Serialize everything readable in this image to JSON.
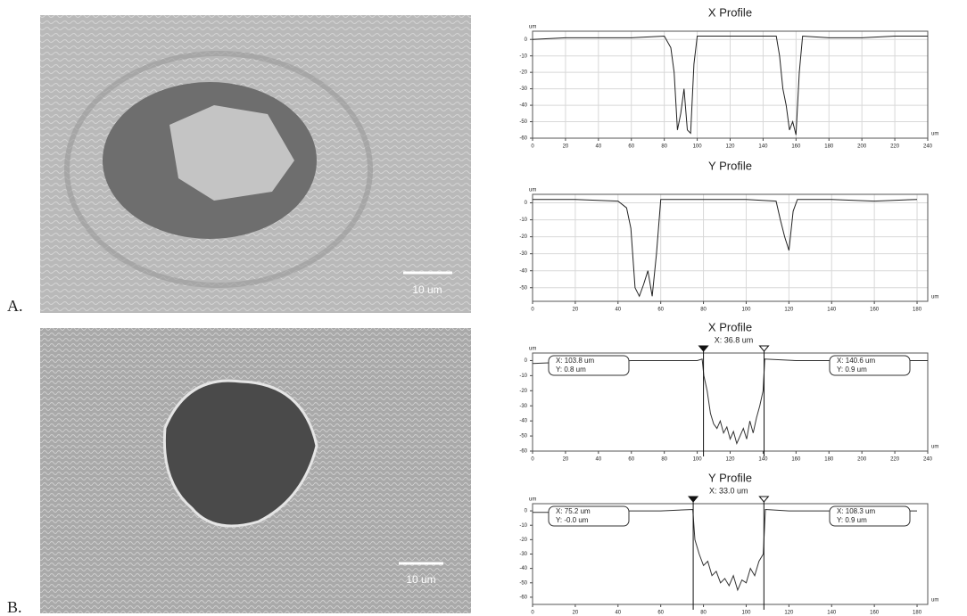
{
  "panels": [
    {
      "label": "A.",
      "scale_label": "10 um"
    },
    {
      "label": "B.",
      "scale_label": "10 um"
    }
  ],
  "chart_data": [
    {
      "type": "line",
      "title": "X Profile",
      "y_unit": "um",
      "x_unit": "um",
      "color": "#222222",
      "grid": true,
      "x": [
        0,
        20,
        40,
        60,
        80,
        84,
        86,
        88,
        90,
        92,
        94,
        96,
        98,
        100,
        120,
        140,
        148,
        150,
        152,
        154,
        156,
        158,
        160,
        162,
        164,
        180,
        200,
        220,
        240
      ],
      "values": [
        0,
        1,
        1,
        1,
        2,
        -5,
        -20,
        -55,
        -45,
        -30,
        -55,
        -57,
        -15,
        2,
        2,
        2,
        2,
        -10,
        -30,
        -40,
        -55,
        -50,
        -58,
        -20,
        2,
        1,
        1,
        2,
        2
      ],
      "xlim": [
        0,
        240
      ],
      "ylim": [
        -60,
        5
      ],
      "xticks": [
        0,
        20,
        40,
        60,
        80,
        100,
        120,
        140,
        160,
        180,
        200,
        220,
        240
      ],
      "yticks": [
        0,
        -10,
        -20,
        -30,
        -40,
        -50,
        -60
      ]
    },
    {
      "type": "line",
      "title": "Y Profile",
      "y_unit": "um",
      "x_unit": "um",
      "color": "#222222",
      "grid": true,
      "x": [
        0,
        20,
        40,
        44,
        46,
        48,
        50,
        52,
        54,
        56,
        58,
        60,
        80,
        100,
        114,
        116,
        118,
        120,
        122,
        124,
        140,
        160,
        180
      ],
      "values": [
        2,
        2,
        1,
        -3,
        -15,
        -50,
        -55,
        -48,
        -40,
        -55,
        -30,
        2,
        2,
        2,
        1,
        -10,
        -20,
        -28,
        -5,
        2,
        2,
        1,
        2
      ],
      "xlim": [
        0,
        185
      ],
      "ylim": [
        -58,
        5
      ],
      "xticks": [
        0,
        20,
        40,
        60,
        80,
        100,
        120,
        140,
        160,
        180
      ],
      "yticks": [
        0,
        -10,
        -20,
        -30,
        -40,
        -50
      ]
    },
    {
      "type": "line",
      "title": "X Profile",
      "cursor_label": "X: 36.8 um",
      "y_unit": "um",
      "x_unit": "um",
      "color": "#333333",
      "grid": false,
      "x": [
        0,
        20,
        40,
        60,
        80,
        100,
        103,
        104,
        106,
        108,
        110,
        112,
        114,
        116,
        118,
        120,
        122,
        124,
        126,
        128,
        130,
        132,
        134,
        136,
        138,
        140,
        141,
        160,
        180,
        200,
        220,
        240
      ],
      "values": [
        -2,
        -1,
        -1,
        0,
        0,
        0,
        1,
        -10,
        -20,
        -35,
        -42,
        -45,
        -40,
        -48,
        -44,
        -52,
        -47,
        -55,
        -50,
        -45,
        -52,
        -40,
        -48,
        -38,
        -30,
        -20,
        1,
        0,
        0,
        0,
        0,
        0
      ],
      "xlim": [
        0,
        240
      ],
      "ylim": [
        -60,
        5
      ],
      "xticks": [
        0,
        20,
        40,
        60,
        80,
        100,
        120,
        140,
        160,
        180,
        200,
        220,
        240
      ],
      "yticks": [
        0,
        -10,
        -20,
        -30,
        -40,
        -50,
        -60
      ],
      "cursors": [
        103.8,
        140.6
      ],
      "cursor_boxes": [
        [
          "X: 103.8 um",
          "Y: 0.8 um"
        ],
        [
          "X: 140.6 um",
          "Y: 0.9 um"
        ]
      ]
    },
    {
      "type": "line",
      "title": "Y Profile",
      "cursor_label": "X: 33.0 um",
      "y_unit": "um",
      "x_unit": "um",
      "color": "#333333",
      "grid": false,
      "x": [
        0,
        20,
        40,
        60,
        75,
        76,
        78,
        80,
        82,
        84,
        86,
        88,
        90,
        92,
        94,
        96,
        98,
        100,
        102,
        104,
        106,
        108,
        109,
        120,
        140,
        160,
        180
      ],
      "values": [
        -1,
        -1,
        0,
        0,
        1,
        -20,
        -30,
        -38,
        -35,
        -45,
        -42,
        -50,
        -47,
        -52,
        -45,
        -55,
        -48,
        -50,
        -40,
        -45,
        -35,
        -30,
        1,
        0,
        0,
        0,
        0
      ],
      "xlim": [
        0,
        185
      ],
      "ylim": [
        -65,
        5
      ],
      "xticks": [
        0,
        20,
        40,
        60,
        80,
        100,
        120,
        140,
        160,
        180
      ],
      "yticks": [
        0,
        -10,
        -20,
        -30,
        -40,
        -50,
        -60
      ],
      "cursors": [
        75.2,
        108.3
      ],
      "cursor_boxes": [
        [
          "X: 75.2 um",
          "Y: -0.0 um"
        ],
        [
          "X: 108.3 um",
          "Y: 0.9 um"
        ]
      ]
    }
  ]
}
